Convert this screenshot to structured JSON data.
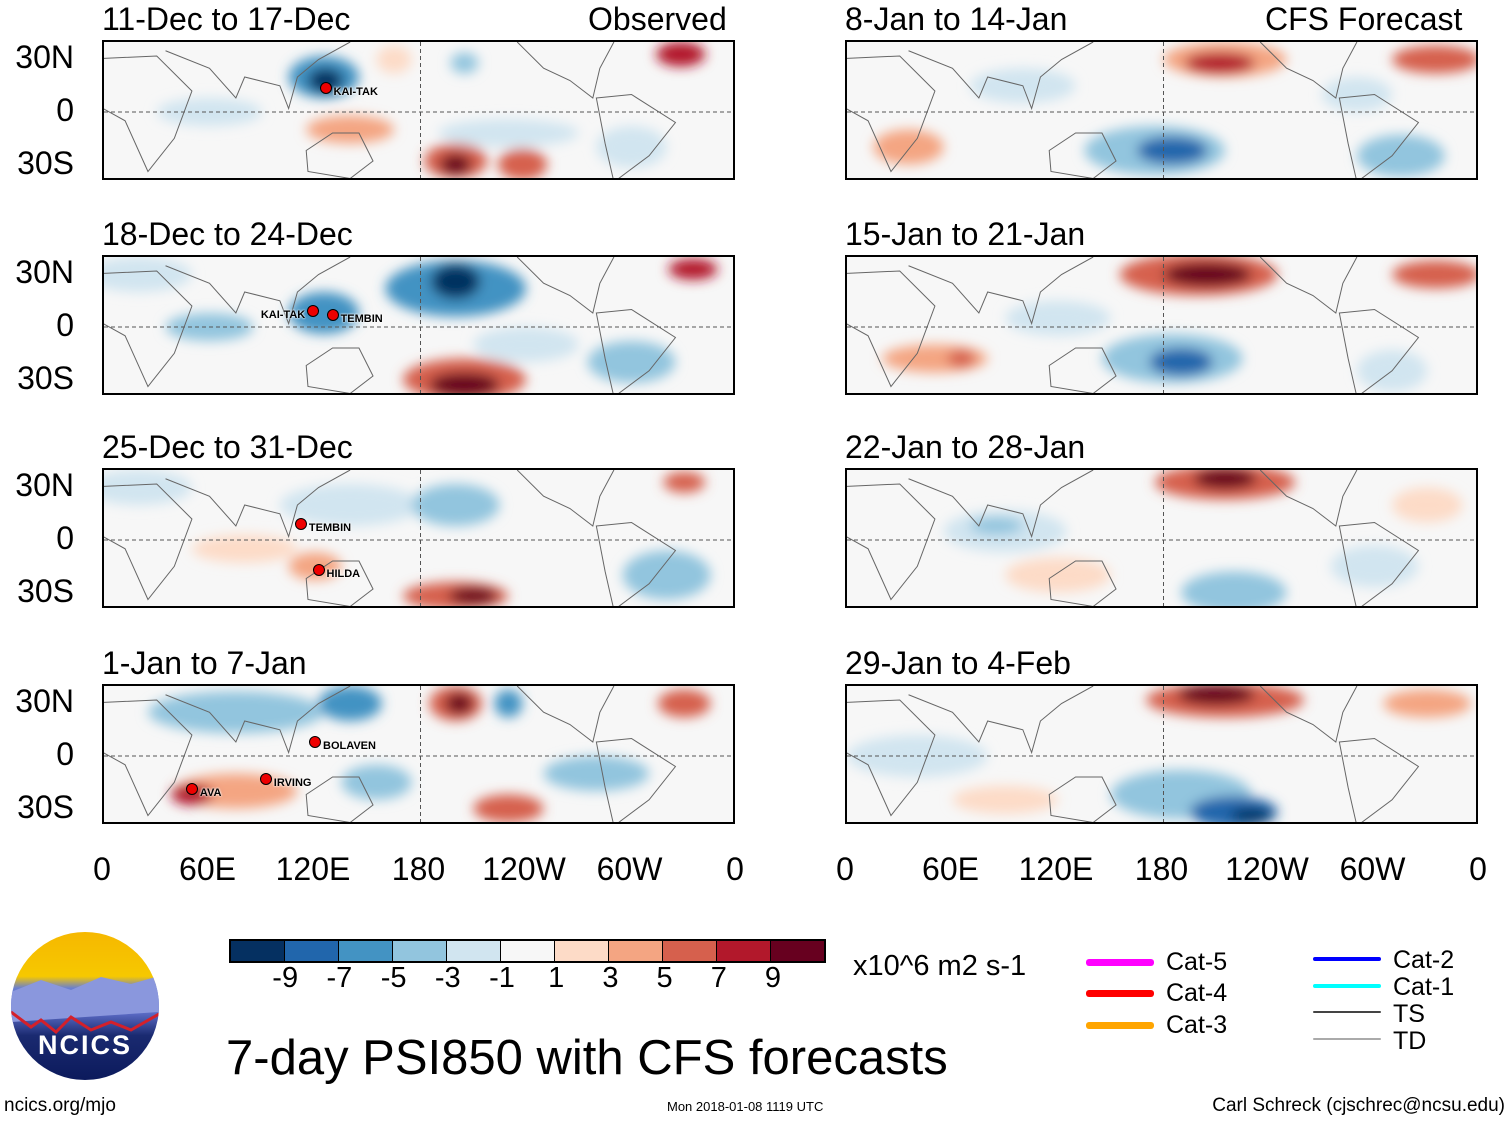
{
  "headers": {
    "left": "Observed",
    "right": "CFS Forecast"
  },
  "panels": [
    {
      "title": "11-Dec to 17-Dec",
      "storms": [
        {
          "name": "KAI-TAK",
          "lon": 126,
          "lat": 14
        }
      ]
    },
    {
      "title": "8-Jan to 14-Jan",
      "storms": []
    },
    {
      "title": "18-Dec to 24-Dec",
      "storms": [
        {
          "name": "KAI-TAK",
          "lon": 119,
          "lat": 9
        },
        {
          "name": "TEMBIN",
          "lon": 130,
          "lat": 7
        }
      ]
    },
    {
      "title": "15-Jan to 21-Jan",
      "storms": []
    },
    {
      "title": "25-Dec to 31-Dec",
      "storms": [
        {
          "name": "TEMBIN",
          "lon": 112,
          "lat": 9
        },
        {
          "name": "HILDA",
          "lon": 122,
          "lat": -17
        }
      ]
    },
    {
      "title": "22-Jan to 28-Jan",
      "storms": []
    },
    {
      "title": "1-Jan to 7-Jan",
      "storms": [
        {
          "name": "BOLAVEN",
          "lon": 120,
          "lat": 8
        },
        {
          "name": "AVA",
          "lon": 50,
          "lat": -19
        },
        {
          "name": "IRVING",
          "lon": 92,
          "lat": -13
        }
      ]
    },
    {
      "title": "29-Jan to 4-Feb",
      "storms": []
    }
  ],
  "y_ticks": [
    "30N",
    "0",
    "30S"
  ],
  "x_ticks": [
    "0",
    "60E",
    "120E",
    "180",
    "120W",
    "60W",
    "0"
  ],
  "colorbar": {
    "labels": [
      "-9",
      "-7",
      "-5",
      "-3",
      "-1",
      "1",
      "3",
      "5",
      "7",
      "9"
    ],
    "colors": [
      "#053061",
      "#2166ac",
      "#4393c3",
      "#92c5de",
      "#d1e5f0",
      "#f7f7f7",
      "#fddbc7",
      "#f4a582",
      "#d6604d",
      "#b2182b",
      "#67001f"
    ],
    "units": "x10^6 m2 s-1"
  },
  "legend": [
    {
      "label": "Cat-5",
      "color": "#ff00ff"
    },
    {
      "label": "Cat-4",
      "color": "#ff0000"
    },
    {
      "label": "Cat-3",
      "color": "#ffa500"
    },
    {
      "label": "Cat-2",
      "color": "#0000ff"
    },
    {
      "label": "Cat-1",
      "color": "#00ffff"
    },
    {
      "label": "TS",
      "color": "#444444"
    },
    {
      "label": "TD",
      "color": "#aaaaaa"
    }
  ],
  "logo_text": "NCICS",
  "main_title": "7-day PSI850 with CFS forecasts",
  "footer": {
    "left": "ncics.org/mjo",
    "center": "Mon 2018-01-08 1119 UTC",
    "right": "Carl Schreck (cjschrec@ncsu.edu)"
  }
}
